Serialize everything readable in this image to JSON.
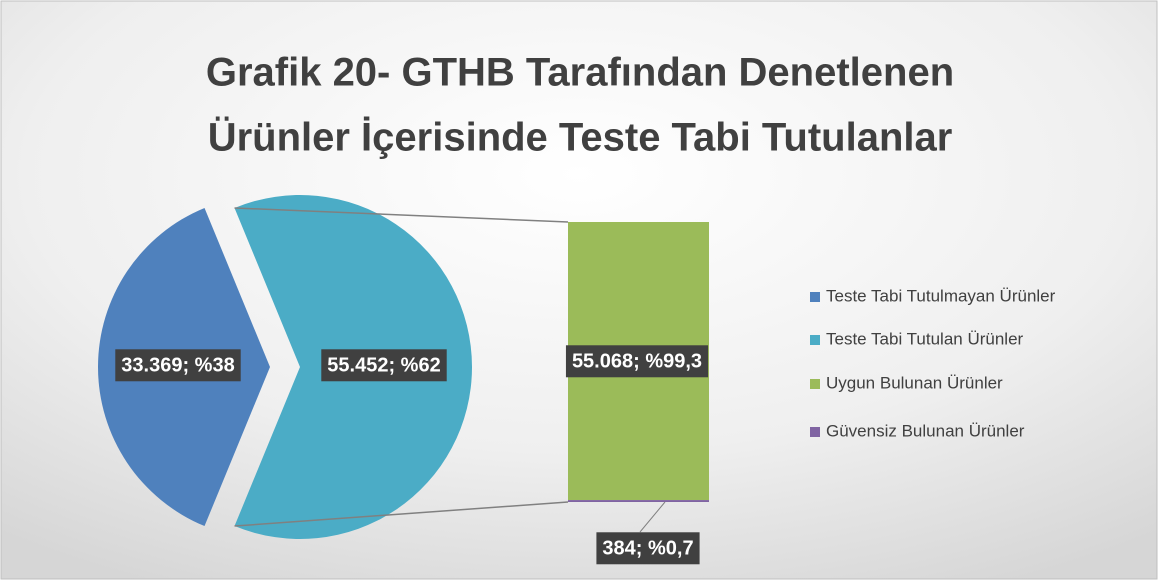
{
  "chart_data": {
    "type": "pie",
    "title": [
      "Grafik 20- GTHB Tarafından Denetlenen",
      "Ürünler  İçerisinde Teste Tabi Tutulanlar"
    ],
    "categories": [
      "Teste Tabi Tutulmayan Ürünler",
      "Teste Tabi Tutulan Ürünler"
    ],
    "values": [
      33369,
      55452
    ],
    "value_labels": [
      "33.369; %38",
      "55.452; %62"
    ],
    "colors": [
      "#4f81bd",
      "#4bacc6"
    ],
    "breakdown": {
      "type": "bar",
      "categories": [
        "Uygun Bulunan Ürünler",
        "Güvensiz Bulunan Ürünler"
      ],
      "values": [
        55068,
        384
      ],
      "value_labels": [
        "55.068; %99,3",
        "384; %0,7"
      ],
      "colors": [
        "#9bbb59",
        "#8064a2"
      ]
    }
  }
}
